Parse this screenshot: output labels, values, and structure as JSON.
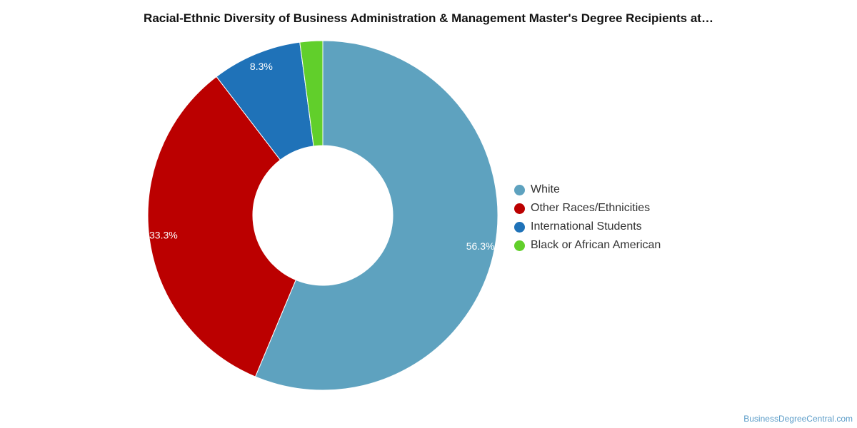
{
  "title": "Racial-Ethnic Diversity of Business Administration & Management Master's Degree Recipients at…",
  "watermark": "BusinessDegreeCentral.com",
  "chart_data": {
    "type": "pie",
    "donut": true,
    "legend_position": "right",
    "slices": [
      {
        "label": "White",
        "value": 56.3,
        "display": "56.3%",
        "color": "#5ea2bf"
      },
      {
        "label": "Other Races/Ethnicities",
        "value": 33.3,
        "display": "33.3%",
        "color": "#bb0000"
      },
      {
        "label": "International Students",
        "value": 8.3,
        "display": "8.3%",
        "color": "#1f72b8"
      },
      {
        "label": "Black or African American",
        "value": 2.1,
        "display": "",
        "color": "#61cf2b"
      }
    ]
  }
}
